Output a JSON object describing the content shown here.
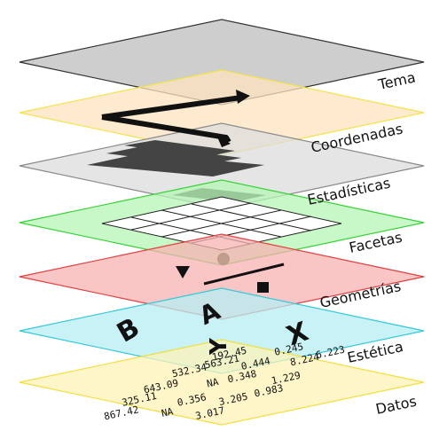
{
  "layers": [
    {
      "label": "Tema",
      "fill": "#bdbdbd",
      "stroke": "#333333"
    },
    {
      "label": "Coordenadas",
      "fill": "#fde4bf",
      "stroke": "#f2e24b"
    },
    {
      "label": "Estadísticas",
      "fill": "#dcdcdc",
      "stroke": "#8a8a8a"
    },
    {
      "label": "Facetas",
      "fill": "#b6f5b6",
      "stroke": "#38d138"
    },
    {
      "label": "Geometrías",
      "fill": "#f7b2b2",
      "stroke": "#e04040"
    },
    {
      "label": "Estética",
      "fill": "#b6eef3",
      "stroke": "#35c8d8"
    },
    {
      "label": "Datos",
      "fill": "#fdf2b7",
      "stroke": "#f1df40"
    }
  ],
  "aesthetics": {
    "letters": [
      "B",
      "A",
      "Y",
      "X"
    ]
  },
  "data_values": [
    "192.45",
    "532.34",
    "563.21",
    "643.09",
    "0.444",
    "0.245",
    "325.11",
    "NA",
    "0.348",
    "8.224",
    "6.223",
    "867.42",
    "0.356",
    "1.229",
    "NA",
    "3.205",
    "0.983",
    "3.017"
  ]
}
